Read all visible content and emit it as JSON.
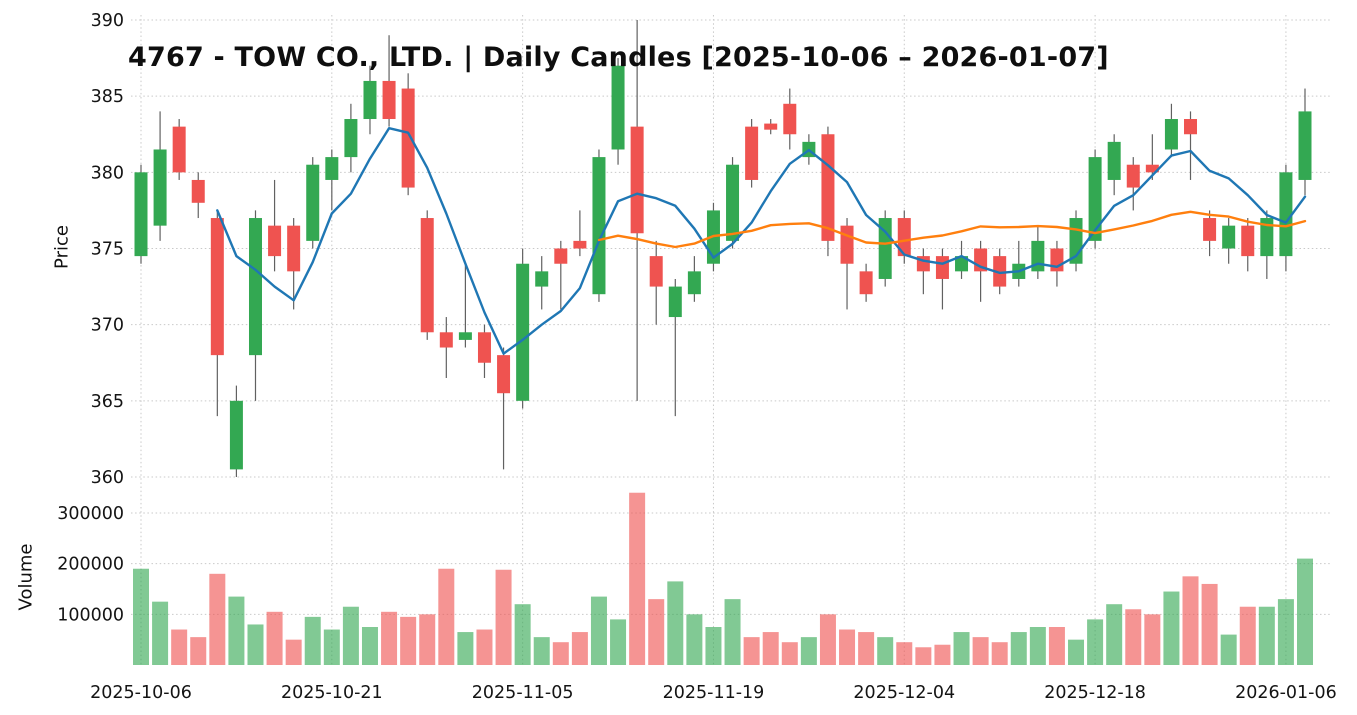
{
  "title": "4767 - TOW CO., LTD. | Daily Candles [2025-10-06 – 2026-01-07]",
  "axes": {
    "price_label": "Price",
    "volume_label": "Volume"
  },
  "colors": {
    "up": "#33a852",
    "down": "#ef5350",
    "ma_fast": "#1f77b4",
    "ma_slow": "#ff7f0e",
    "wick": "#616161",
    "grid": "#c9c9c9",
    "text": "#141414",
    "background": "#ffffff"
  },
  "chart_data": {
    "type": "candlestick",
    "title": "4767 - TOW CO., LTD. | Daily Candles [2025-10-06 – 2026-01-07]",
    "panels": [
      "price",
      "volume"
    ],
    "grid": true,
    "legend_position": "none",
    "x_tick_labels": [
      "2025-10-06",
      "2025-10-21",
      "2025-11-05",
      "2025-11-19",
      "2025-12-04",
      "2025-12-18",
      "2026-01-06"
    ],
    "x_tick_indices": [
      0,
      10,
      20,
      30,
      40,
      50,
      60
    ],
    "price_ticks": [
      360,
      365,
      370,
      375,
      380,
      385,
      390
    ],
    "volume_ticks": [
      100000,
      200000,
      300000
    ],
    "price_axis_range": [
      358.5,
      390.8
    ],
    "volume_axis_range": [
      0,
      350000
    ],
    "overlays": [
      {
        "name": "SMA-5",
        "period": 5,
        "color": "#1f77b4"
      },
      {
        "name": "SMA-25",
        "period": 25,
        "color": "#ff7f0e"
      }
    ],
    "columns": [
      "date",
      "open",
      "high",
      "low",
      "close",
      "volume"
    ],
    "ohlcv": [
      [
        "2025-10-06",
        374.5,
        380.5,
        374.0,
        380.0,
        190000
      ],
      [
        "2025-10-07",
        376.5,
        384.0,
        375.5,
        381.5,
        125000
      ],
      [
        "2025-10-08",
        383.0,
        383.5,
        379.5,
        380.0,
        70000
      ],
      [
        "2025-10-09",
        379.5,
        380.0,
        377.0,
        378.0,
        55000
      ],
      [
        "2025-10-10",
        377.0,
        377.5,
        364.0,
        368.0,
        180000
      ],
      [
        "2025-10-14",
        360.5,
        366.0,
        360.0,
        365.0,
        135000
      ],
      [
        "2025-10-15",
        368.0,
        377.5,
        365.0,
        377.0,
        80000
      ],
      [
        "2025-10-16",
        376.5,
        379.5,
        373.5,
        374.5,
        105000
      ],
      [
        "2025-10-17",
        376.5,
        377.0,
        371.0,
        373.5,
        50000
      ],
      [
        "2025-10-20",
        375.5,
        381.0,
        375.0,
        380.5,
        95000
      ],
      [
        "2025-10-21",
        379.5,
        381.5,
        377.5,
        381.0,
        70000
      ],
      [
        "2025-10-22",
        381.0,
        384.5,
        380.0,
        383.5,
        115000
      ],
      [
        "2025-10-23",
        383.5,
        387.0,
        382.5,
        386.0,
        75000
      ],
      [
        "2025-10-24",
        386.0,
        389.0,
        383.0,
        383.5,
        105000
      ],
      [
        "2025-10-27",
        385.5,
        386.5,
        378.5,
        379.0,
        95000
      ],
      [
        "2025-10-28",
        377.0,
        377.5,
        369.0,
        369.5,
        100000
      ],
      [
        "2025-10-29",
        369.5,
        370.5,
        366.5,
        368.5,
        190000
      ],
      [
        "2025-10-30",
        369.0,
        374.0,
        368.5,
        369.5,
        65000
      ],
      [
        "2025-10-31",
        369.5,
        370.0,
        366.5,
        367.5,
        70000
      ],
      [
        "2025-11-04",
        368.0,
        368.5,
        360.5,
        365.5,
        188000
      ],
      [
        "2025-11-05",
        365.0,
        375.0,
        364.5,
        374.0,
        120000
      ],
      [
        "2025-11-06",
        372.5,
        374.5,
        371.0,
        373.5,
        55000
      ],
      [
        "2025-11-07",
        375.0,
        375.5,
        371.0,
        374.0,
        45000
      ],
      [
        "2025-11-10",
        375.5,
        377.5,
        374.5,
        375.0,
        65000
      ],
      [
        "2025-11-11",
        372.0,
        381.5,
        371.5,
        381.0,
        135000
      ],
      [
        "2025-11-12",
        381.5,
        387.5,
        380.5,
        387.0,
        90000
      ],
      [
        "2025-11-13",
        383.0,
        390.0,
        365.0,
        376.0,
        340000
      ],
      [
        "2025-11-14",
        374.5,
        375.5,
        370.0,
        372.5,
        130000
      ],
      [
        "2025-11-17",
        370.5,
        373.0,
        364.0,
        372.5,
        165000
      ],
      [
        "2025-11-18",
        372.0,
        374.5,
        371.5,
        373.5,
        100000
      ],
      [
        "2025-11-19",
        374.0,
        378.0,
        373.5,
        377.5,
        75000
      ],
      [
        "2025-11-20",
        375.5,
        381.0,
        375.0,
        380.5,
        130000
      ],
      [
        "2025-11-21",
        383.0,
        383.5,
        379.0,
        379.5,
        55000
      ],
      [
        "2025-11-25",
        383.2,
        383.5,
        382.5,
        382.8,
        65000
      ],
      [
        "2025-11-26",
        384.5,
        385.5,
        381.5,
        382.5,
        45000
      ],
      [
        "2025-11-27",
        381.0,
        382.5,
        380.5,
        382.0,
        55000
      ],
      [
        "2025-11-28",
        382.5,
        383.0,
        374.5,
        375.5,
        100000
      ],
      [
        "2025-12-01",
        376.5,
        377.0,
        371.0,
        374.0,
        70000
      ],
      [
        "2025-12-02",
        373.5,
        374.0,
        371.5,
        372.0,
        65000
      ],
      [
        "2025-12-03",
        373.0,
        377.5,
        372.5,
        377.0,
        55000
      ],
      [
        "2025-12-04",
        377.0,
        377.5,
        374.0,
        374.5,
        45000
      ],
      [
        "2025-12-05",
        374.5,
        375.0,
        372.0,
        373.5,
        35000
      ],
      [
        "2025-12-08",
        374.5,
        375.0,
        371.0,
        373.0,
        40000
      ],
      [
        "2025-12-09",
        373.5,
        375.5,
        373.0,
        374.5,
        65000
      ],
      [
        "2025-12-10",
        375.0,
        375.5,
        371.5,
        373.5,
        55000
      ],
      [
        "2025-12-11",
        374.5,
        375.0,
        372.0,
        372.5,
        45000
      ],
      [
        "2025-12-12",
        373.0,
        375.5,
        372.5,
        374.0,
        65000
      ],
      [
        "2025-12-15",
        373.5,
        376.5,
        373.0,
        375.5,
        75000
      ],
      [
        "2025-12-16",
        375.0,
        375.5,
        372.5,
        373.5,
        75000
      ],
      [
        "2025-12-17",
        374.0,
        377.5,
        373.5,
        377.0,
        50000
      ],
      [
        "2025-12-18",
        375.5,
        381.5,
        375.0,
        381.0,
        90000
      ],
      [
        "2025-12-19",
        379.5,
        382.5,
        378.5,
        382.0,
        120000
      ],
      [
        "2025-12-22",
        380.5,
        381.0,
        377.5,
        379.0,
        110000
      ],
      [
        "2025-12-23",
        380.5,
        382.5,
        379.5,
        380.0,
        100000
      ],
      [
        "2025-12-24",
        381.5,
        384.5,
        381.0,
        383.5,
        145000
      ],
      [
        "2025-12-25",
        383.5,
        384.0,
        379.5,
        382.5,
        175000
      ],
      [
        "2025-12-26",
        377.0,
        377.5,
        374.5,
        375.5,
        160000
      ],
      [
        "2025-12-29",
        375.0,
        377.0,
        374.0,
        376.5,
        60000
      ],
      [
        "2025-12-30",
        376.5,
        377.0,
        373.5,
        374.5,
        115000
      ],
      [
        "2026-01-05",
        374.5,
        377.5,
        373.0,
        377.0,
        115000
      ],
      [
        "2026-01-06",
        374.5,
        380.5,
        373.5,
        380.0,
        130000
      ],
      [
        "2026-01-07",
        379.5,
        385.5,
        378.5,
        384.0,
        210000
      ]
    ]
  }
}
